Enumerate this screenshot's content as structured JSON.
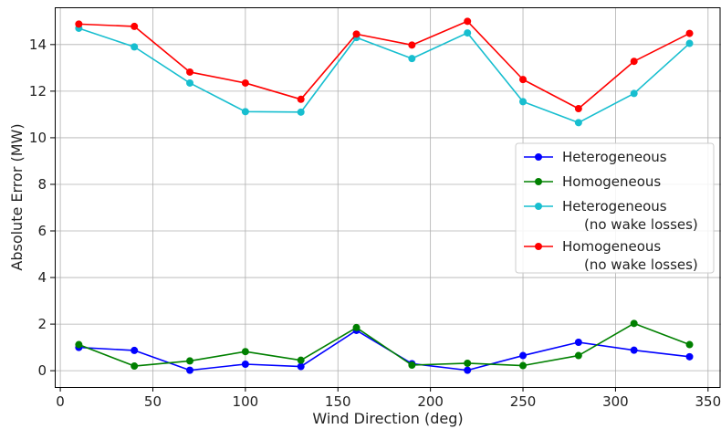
{
  "chart_data": {
    "type": "line",
    "title": "",
    "xlabel": "Wind Direction (deg)",
    "ylabel": "Absolute Error (MW)",
    "xlim": [
      -3,
      357
    ],
    "ylim": [
      -0.7,
      15.6
    ],
    "xticks": [
      0,
      50,
      100,
      150,
      200,
      250,
      300,
      350
    ],
    "yticks": [
      0,
      2,
      4,
      6,
      8,
      10,
      12,
      14
    ],
    "grid": true,
    "legend_position": "center-right",
    "x": [
      10,
      40,
      70,
      100,
      130,
      160,
      190,
      220,
      250,
      280,
      310,
      340
    ],
    "series": [
      {
        "name": "Heterogeneous",
        "legend_lines": [
          "Heterogeneous"
        ],
        "color": "#0000ff",
        "values": [
          1.0,
          0.87,
          0.02,
          0.28,
          0.18,
          1.73,
          0.3,
          0.02,
          0.65,
          1.22,
          0.88,
          0.6
        ]
      },
      {
        "name": "Homogeneous",
        "legend_lines": [
          "Homogeneous"
        ],
        "color": "#008000",
        "values": [
          1.12,
          0.2,
          0.42,
          0.82,
          0.45,
          1.85,
          0.24,
          0.32,
          0.22,
          0.65,
          2.03,
          1.12
        ]
      },
      {
        "name": "Heterogeneous (no wake losses)",
        "legend_lines": [
          "Heterogeneous",
          "(no wake losses)"
        ],
        "color": "#17becf",
        "values": [
          14.7,
          13.9,
          12.35,
          11.12,
          11.1,
          14.3,
          13.4,
          14.5,
          11.55,
          10.65,
          11.9,
          14.05
        ]
      },
      {
        "name": "Homogeneous (no wake losses)",
        "legend_lines": [
          "Homogeneous",
          "(no wake losses)"
        ],
        "color": "#ff0000",
        "values": [
          14.88,
          14.78,
          12.82,
          12.35,
          11.65,
          14.45,
          13.98,
          15.0,
          12.5,
          11.25,
          13.28,
          14.48
        ]
      }
    ]
  }
}
